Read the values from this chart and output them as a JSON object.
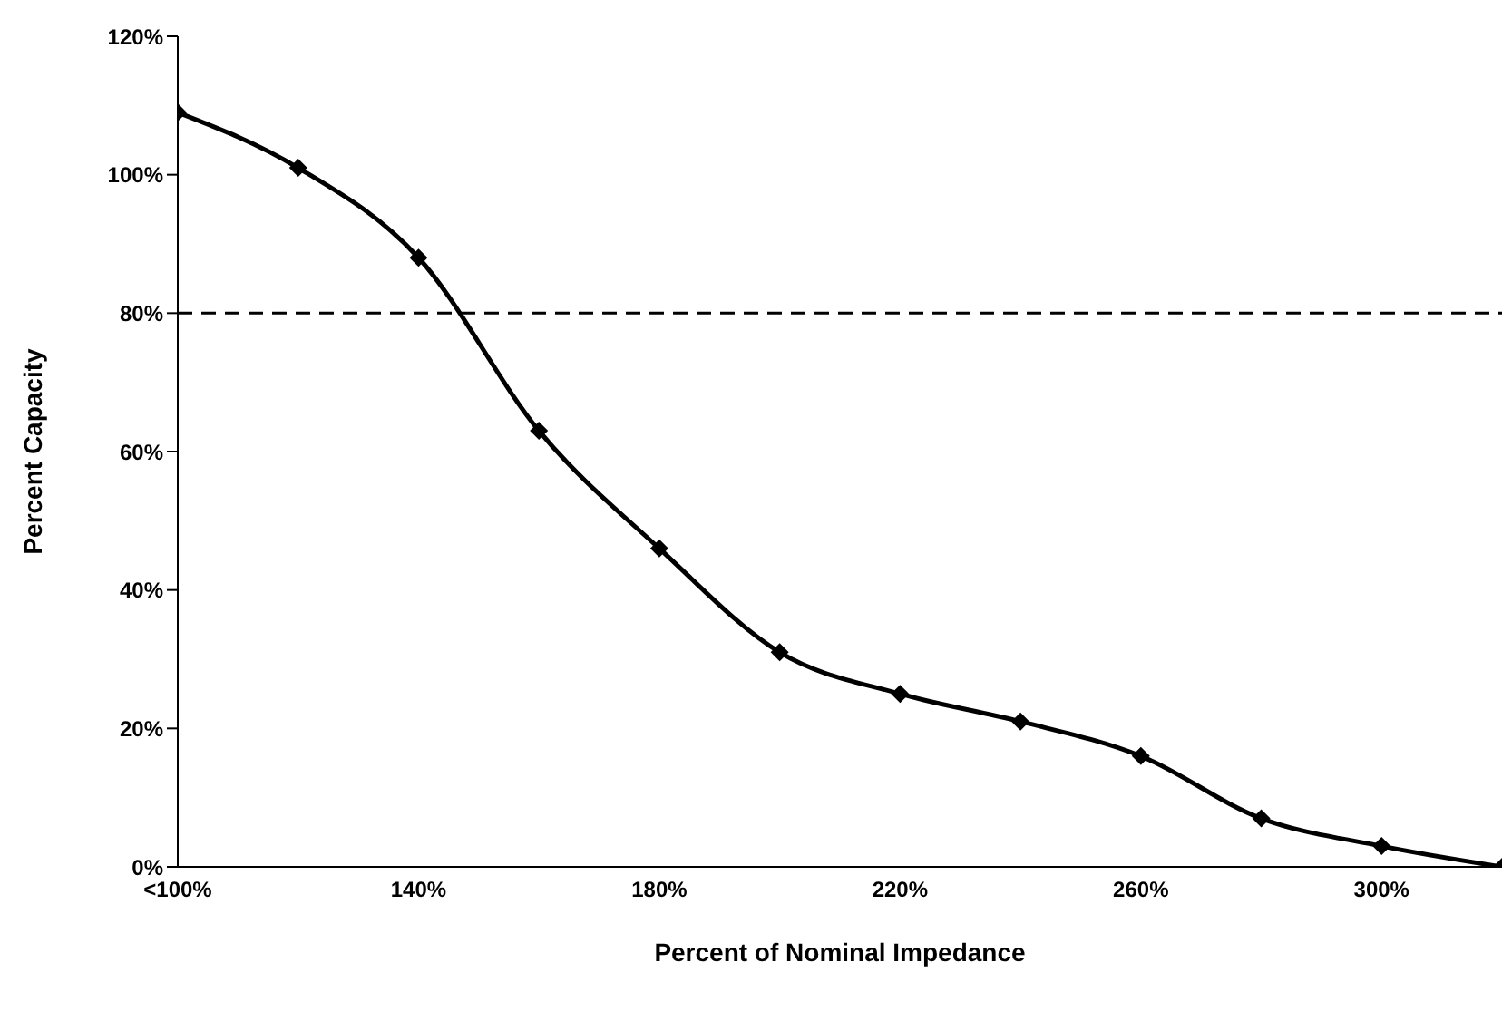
{
  "chart_data": {
    "type": "line",
    "xlabel": "Percent of Nominal Impedance",
    "ylabel": "Percent Capacity",
    "categories": [
      "<100%",
      null,
      "140%",
      null,
      "180%",
      null,
      "220%",
      null,
      "260%",
      null,
      "300%",
      null
    ],
    "series": [
      {
        "color": "#000000",
        "values": [
          109,
          101,
          88,
          63,
          46,
          31,
          25,
          21,
          16,
          7,
          3,
          0
        ]
      }
    ],
    "ylim": [
      0,
      120
    ],
    "yticks": [
      {
        "value": 0,
        "label": "0%"
      },
      {
        "value": 20,
        "label": "20%"
      },
      {
        "value": 40,
        "label": "40%"
      },
      {
        "value": 60,
        "label": "60%"
      },
      {
        "value": 80,
        "label": "80%"
      },
      {
        "value": 100,
        "label": "100%"
      },
      {
        "value": 120,
        "label": "120%"
      }
    ],
    "ref_lines": [
      {
        "axis": "y",
        "value": 80,
        "label": null,
        "color": "#000000",
        "line_style": "dashed"
      }
    ],
    "marker": "diamond",
    "line_style": "solid",
    "grid": false,
    "legend": false
  }
}
